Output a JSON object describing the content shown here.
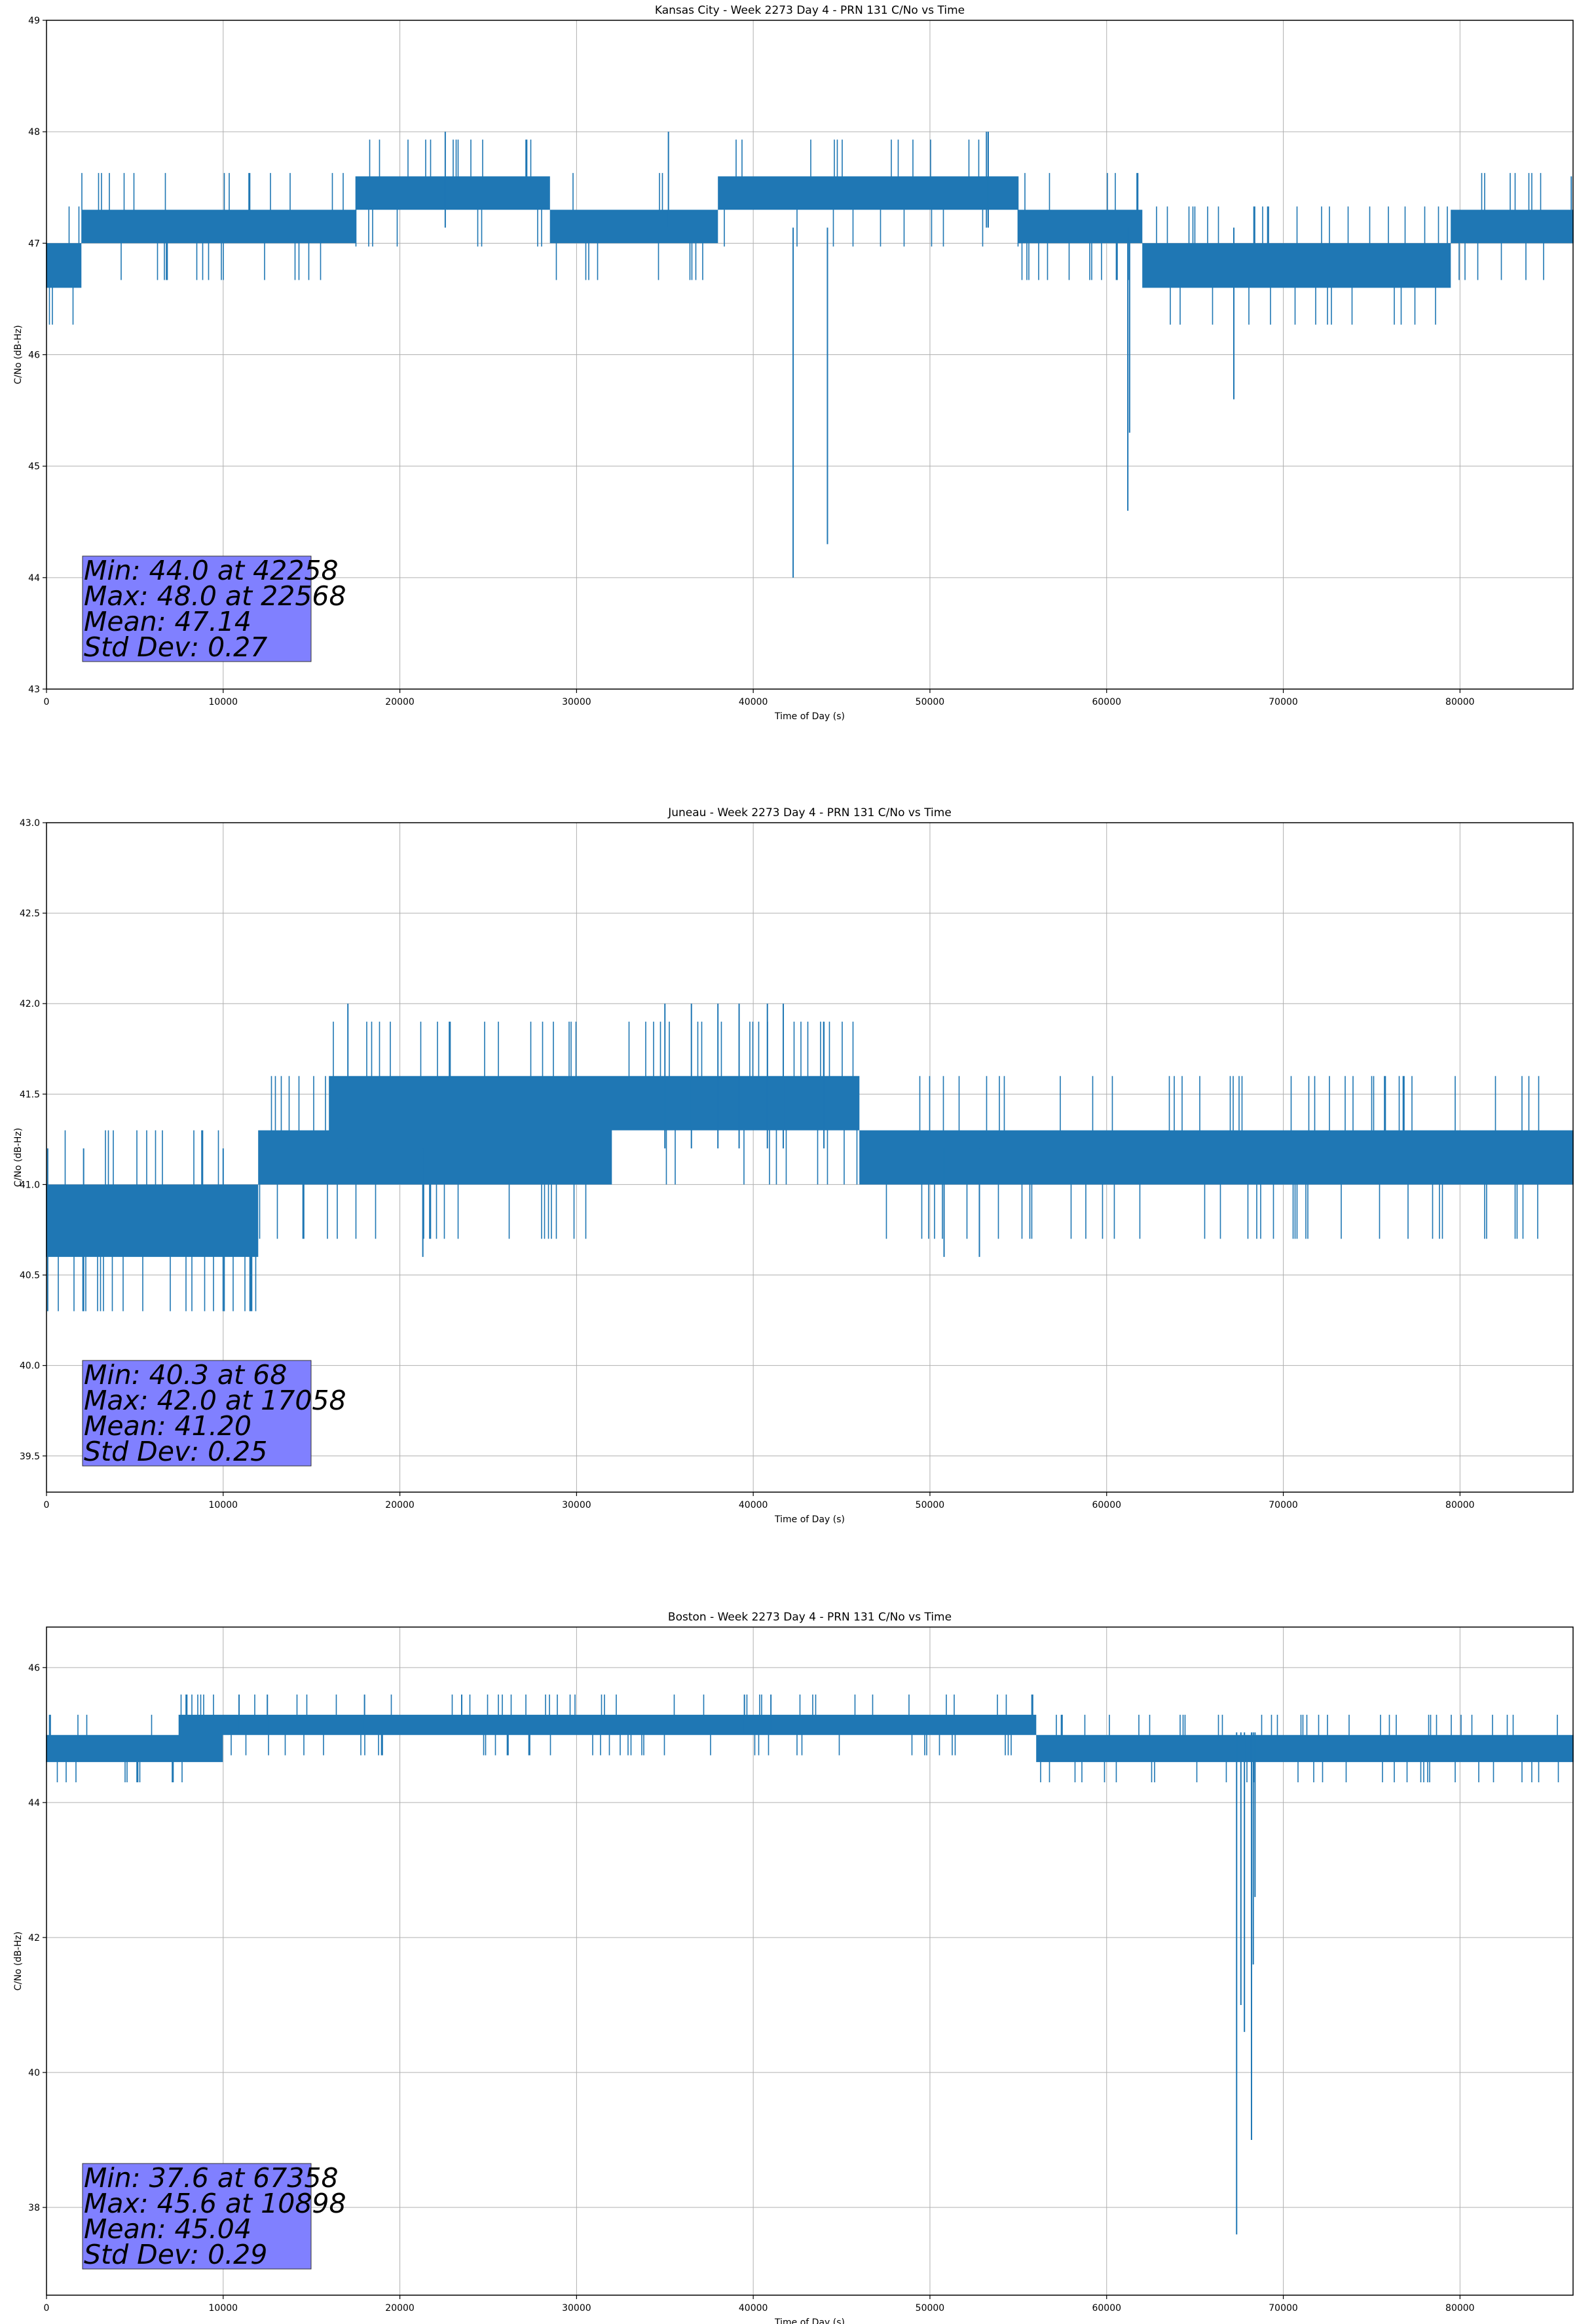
{
  "figure": {
    "colors": {
      "line": "#1f77b4",
      "stats_box": "#8080ff",
      "grid": "#b0b0b0"
    }
  },
  "chart_data": [
    {
      "type": "line",
      "title": "Kansas City - Week 2273 Day 4 - PRN 131 C/No vs Time",
      "xlabel": "Time of Day (s)",
      "ylabel": "C/No (dB-Hz)",
      "xlim": [
        0,
        86400
      ],
      "ylim": [
        43,
        49
      ],
      "xticks": [
        0,
        10000,
        20000,
        30000,
        40000,
        50000,
        60000,
        70000,
        80000
      ],
      "xtick_labels": [
        "0",
        "10000",
        "20000",
        "30000",
        "40000",
        "50000",
        "60000",
        "70000",
        "80000"
      ],
      "yticks": [
        43,
        44,
        45,
        46,
        47,
        48,
        49
      ],
      "ytick_labels": [
        "43",
        "44",
        "45",
        "46",
        "47",
        "48",
        "49"
      ],
      "grid": true,
      "series": [
        {
          "bands": [
            {
              "x": [
                0,
                2000
              ],
              "low": 46.6,
              "high": 47.0
            },
            {
              "x": [
                2000,
                12000
              ],
              "low": 47.0,
              "high": 47.3
            },
            {
              "x": [
                12000,
                17500
              ],
              "low": 47.0,
              "high": 47.3
            },
            {
              "x": [
                17500,
                28500
              ],
              "low": 47.3,
              "high": 47.6
            },
            {
              "x": [
                28500,
                38000
              ],
              "low": 47.0,
              "high": 47.3
            },
            {
              "x": [
                38000,
                55000
              ],
              "low": 47.3,
              "high": 47.6
            },
            {
              "x": [
                55000,
                62000
              ],
              "low": 47.0,
              "high": 47.3
            },
            {
              "x": [
                62000,
                79500
              ],
              "low": 46.6,
              "high": 47.0
            },
            {
              "x": [
                79500,
                86400
              ],
              "low": 47.0,
              "high": 47.3
            }
          ],
          "base": 47.14,
          "noise": 0.33,
          "seed": 11,
          "spikes": [
            {
              "x": 42258,
              "y": 44.0
            },
            {
              "x": 44200,
              "y": 44.3
            },
            {
              "x": 61200,
              "y": 44.6
            },
            {
              "x": 61300,
              "y": 45.3
            },
            {
              "x": 67200,
              "y": 45.6
            },
            {
              "x": 22568,
              "y": 48.0
            },
            {
              "x": 35200,
              "y": 48.0
            },
            {
              "x": 53200,
              "y": 48.0
            },
            {
              "x": 53300,
              "y": 48.0
            },
            {
              "x": 86300,
              "y": 47.6
            }
          ]
        }
      ],
      "stats_text": [
        "Min: 44.0 at 42258",
        "Max: 48.0 at 22568",
        "Mean: 47.14",
        "Std Dev: 0.27"
      ]
    },
    {
      "type": "line",
      "title": "Juneau - Week 2273 Day 4 - PRN 131 C/No vs Time",
      "xlabel": "Time of Day (s)",
      "ylabel": "C/No (dB-Hz)",
      "xlim": [
        0,
        86400
      ],
      "ylim": [
        39.3,
        43.0
      ],
      "xticks": [
        0,
        10000,
        20000,
        30000,
        40000,
        50000,
        60000,
        70000,
        80000
      ],
      "xtick_labels": [
        "0",
        "10000",
        "20000",
        "30000",
        "40000",
        "50000",
        "60000",
        "70000",
        "80000"
      ],
      "yticks": [
        39.5,
        40.0,
        40.5,
        41.0,
        41.5,
        42.0,
        42.5,
        43.0
      ],
      "ytick_labels": [
        "39.5",
        "40.0",
        "40.5",
        "41.0",
        "41.5",
        "42.0",
        "42.5",
        "43.0"
      ],
      "grid": true,
      "series": [
        {
          "bands": [
            {
              "x": [
                0,
                10000
              ],
              "low": 40.6,
              "high": 41.0
            },
            {
              "x": [
                10000,
                12000
              ],
              "low": 40.6,
              "high": 41.0
            },
            {
              "x": [
                12000,
                16000
              ],
              "low": 41.0,
              "high": 41.3
            },
            {
              "x": [
                16000,
                32000
              ],
              "low": 41.0,
              "high": 41.6
            },
            {
              "x": [
                32000,
                46000
              ],
              "low": 41.3,
              "high": 41.6
            },
            {
              "x": [
                46000,
                64000
              ],
              "low": 41.0,
              "high": 41.3
            },
            {
              "x": [
                64000,
                86400
              ],
              "low": 41.0,
              "high": 41.3
            }
          ],
          "base": 41.2,
          "noise": 0.3,
          "seed": 23,
          "spikes": [
            {
              "x": 68,
              "y": 40.3
            },
            {
              "x": 2100,
              "y": 40.3
            },
            {
              "x": 10000,
              "y": 40.3
            },
            {
              "x": 17058,
              "y": 42.0
            },
            {
              "x": 35000,
              "y": 42.0
            },
            {
              "x": 36500,
              "y": 42.0
            },
            {
              "x": 38000,
              "y": 42.0
            },
            {
              "x": 39200,
              "y": 42.0
            },
            {
              "x": 40800,
              "y": 42.0
            },
            {
              "x": 41700,
              "y": 42.0
            },
            {
              "x": 44000,
              "y": 41.9
            },
            {
              "x": 21300,
              "y": 40.6
            },
            {
              "x": 50800,
              "y": 40.6
            },
            {
              "x": 52800,
              "y": 40.6
            }
          ]
        }
      ],
      "stats_text": [
        "Min: 40.3 at 68",
        "Max: 42.0 at 17058",
        "Mean: 41.20",
        "Std Dev: 0.25"
      ]
    },
    {
      "type": "line",
      "title": "Boston - Week 2273 Day 4 - PRN 131 C/No vs Time",
      "xlabel": "Time of Day (s)",
      "ylabel": "C/No (dB-Hz)",
      "xlim": [
        0,
        86400
      ],
      "ylim": [
        36.7,
        46.6
      ],
      "xticks": [
        0,
        10000,
        20000,
        30000,
        40000,
        50000,
        60000,
        70000,
        80000
      ],
      "xtick_labels": [
        "0",
        "10000",
        "20000",
        "30000",
        "40000",
        "50000",
        "60000",
        "70000",
        "80000"
      ],
      "yticks": [
        38,
        40,
        42,
        44,
        46
      ],
      "ytick_labels": [
        "38",
        "40",
        "42",
        "44",
        "46"
      ],
      "grid": true,
      "series": [
        {
          "bands": [
            {
              "x": [
                0,
                7500
              ],
              "low": 44.6,
              "high": 45.0
            },
            {
              "x": [
                7500,
                10000
              ],
              "low": 44.6,
              "high": 45.3
            },
            {
              "x": [
                10000,
                26000
              ],
              "low": 45.0,
              "high": 45.3
            },
            {
              "x": [
                26000,
                38000
              ],
              "low": 45.0,
              "high": 45.3
            },
            {
              "x": [
                38000,
                47000
              ],
              "low": 45.0,
              "high": 45.3
            },
            {
              "x": [
                47000,
                56000
              ],
              "low": 45.0,
              "high": 45.3
            },
            {
              "x": [
                56000,
                86400
              ],
              "low": 44.6,
              "high": 45.0
            }
          ],
          "base": 45.04,
          "noise": 0.3,
          "seed": 37,
          "spikes": [
            {
              "x": 67358,
              "y": 37.6
            },
            {
              "x": 67600,
              "y": 41.0
            },
            {
              "x": 67800,
              "y": 40.6
            },
            {
              "x": 68200,
              "y": 39.0
            },
            {
              "x": 68300,
              "y": 41.6
            },
            {
              "x": 68400,
              "y": 42.6
            },
            {
              "x": 10898,
              "y": 45.6
            },
            {
              "x": 12500,
              "y": 45.6
            },
            {
              "x": 18000,
              "y": 45.6
            },
            {
              "x": 23500,
              "y": 45.6
            },
            {
              "x": 39500,
              "y": 45.6
            },
            {
              "x": 41000,
              "y": 45.6
            }
          ]
        }
      ],
      "stats_text": [
        "Min: 37.6 at 67358",
        "Max: 45.6 at 10898",
        "Mean: 45.04",
        "Std Dev: 0.29"
      ]
    }
  ]
}
